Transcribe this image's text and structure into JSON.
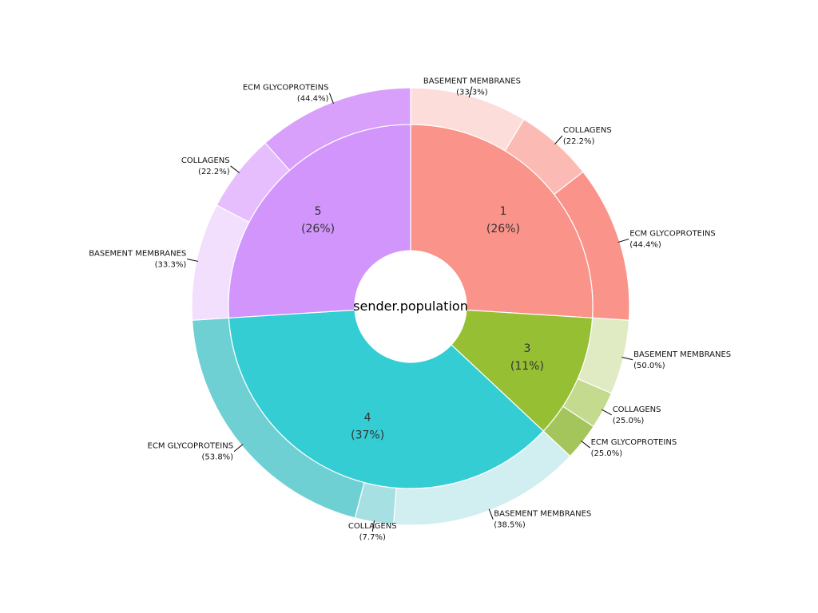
{
  "chart_data": {
    "type": "pie",
    "title": "sender.population",
    "inner": [
      {
        "label": "1",
        "pct_text": "(26%)",
        "value": 26,
        "color": "#FA9389"
      },
      {
        "label": "3",
        "pct_text": "(11%)",
        "value": 11,
        "color": "#96BF33"
      },
      {
        "label": "4",
        "pct_text": "(37%)",
        "value": 37,
        "color": "#33CDD3"
      },
      {
        "label": "5",
        "pct_text": "(26%)",
        "value": 26,
        "color": "#D195FB"
      }
    ],
    "outer": [
      {
        "parent": "1",
        "label": "BASEMENT MEMBRANES",
        "pct_text": "(33.3%)",
        "value": 33.3,
        "color": "#FDDDD9"
      },
      {
        "parent": "1",
        "label": "COLLAGENS",
        "pct_text": "(22.2%)",
        "value": 22.2,
        "color": "#FBBAB3"
      },
      {
        "parent": "1",
        "label": "ECM GLYCOPROTEINS",
        "pct_text": "(44.4%)",
        "value": 44.4,
        "color": "#FA9389"
      },
      {
        "parent": "3",
        "label": "BASEMENT MEMBRANES",
        "pct_text": "(50.0%)",
        "value": 50.0,
        "color": "#E0EBC4"
      },
      {
        "parent": "3",
        "label": "COLLAGENS",
        "pct_text": "(25.0%)",
        "value": 25.0,
        "color": "#C3DA8F"
      },
      {
        "parent": "3",
        "label": "ECM GLYCOPROTEINS",
        "pct_text": "(25.0%)",
        "value": 25.0,
        "color": "#A4C55B"
      },
      {
        "parent": "4",
        "label": "BASEMENT MEMBRANES",
        "pct_text": "(38.5%)",
        "value": 38.5,
        "color": "#D1EEF0"
      },
      {
        "parent": "4",
        "label": "COLLAGENS",
        "pct_text": "(7.7%)",
        "value": 7.7,
        "color": "#A6E0E2"
      },
      {
        "parent": "4",
        "label": "ECM GLYCOPROTEINS",
        "pct_text": "(53.8%)",
        "value": 53.8,
        "color": "#6FD0D4"
      },
      {
        "parent": "5",
        "label": "BASEMENT MEMBRANES",
        "pct_text": "(33.3%)",
        "value": 33.3,
        "color": "#F2DEFD"
      },
      {
        "parent": "5",
        "label": "COLLAGENS",
        "pct_text": "(22.2%)",
        "value": 22.2,
        "color": "#E6BDFD"
      },
      {
        "parent": "5",
        "label": "ECM GLYCOPROTEINS",
        "pct_text": "(44.4%)",
        "value": 44.4,
        "color": "#D89FFB"
      }
    ]
  }
}
